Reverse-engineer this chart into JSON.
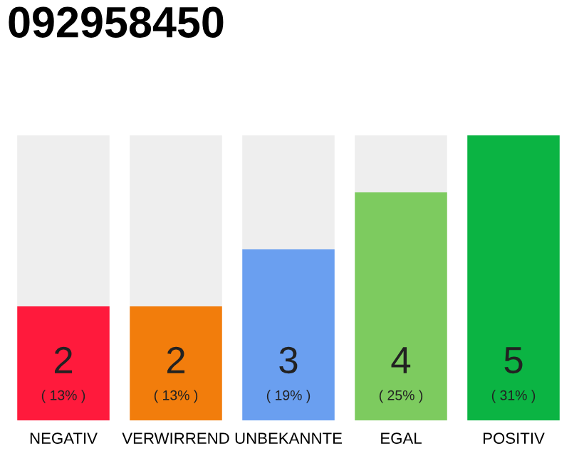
{
  "chart_data": {
    "type": "bar",
    "title": "092958450",
    "stacked": true,
    "categories": [
      "NEGATIV",
      "VERWIRREND",
      "UNBEKANNTE",
      "EGAL",
      "POSITIV"
    ],
    "series": [
      {
        "colors": [
          "#ff1a3c",
          "#f27d0c",
          "#6a9ff0",
          "#7dcb5f",
          "#0bb443"
        ],
        "values": [
          2,
          2,
          3,
          4,
          5
        ],
        "value_labels": [
          "2\n( 13% )",
          "2\n( 13% )",
          "3\n( 19% )",
          "4\n( 25% )",
          "5\n( 31% )"
        ]
      },
      {
        "color": "#eeeeee",
        "values": [
          3,
          3,
          2,
          1,
          0
        ]
      }
    ],
    "ylim": [
      0,
      5
    ],
    "grid": false,
    "legend": false
  }
}
